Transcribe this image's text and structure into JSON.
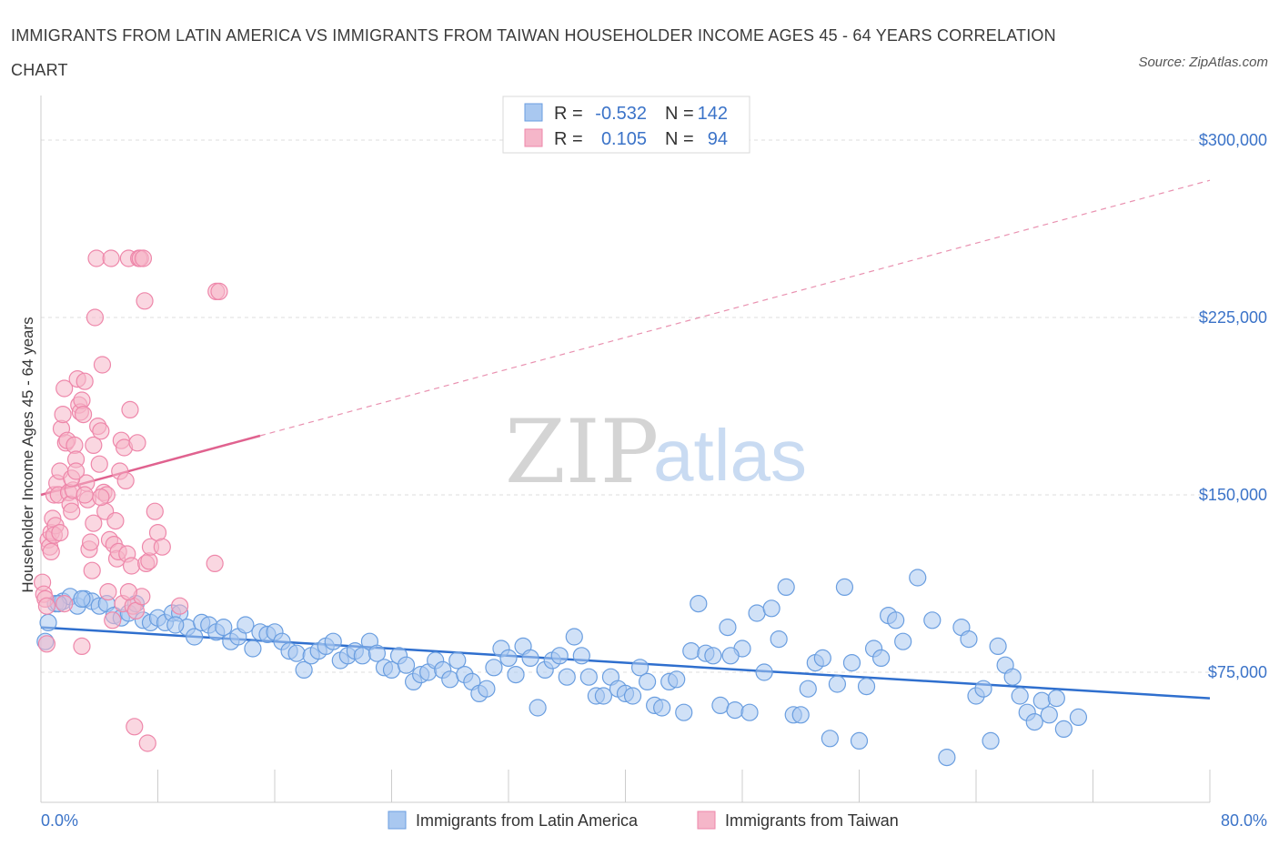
{
  "title": "IMMIGRANTS FROM LATIN AMERICA VS IMMIGRANTS FROM TAIWAN HOUSEHOLDER INCOME AGES 45 - 64 YEARS CORRELATION CHART",
  "source": "Source: ZipAtlas.com",
  "watermark": {
    "zip": "ZIP",
    "atlas": "atlas"
  },
  "legend": {
    "r_label": "R =",
    "n_label": "N =",
    "rows": [
      {
        "r": "-0.532",
        "n": "142",
        "color": "#a9c8f0"
      },
      {
        "r": "0.105",
        "n": "94",
        "color": "#f5b6c9"
      }
    ]
  },
  "chart_data": {
    "type": "scatter",
    "xlabel": "",
    "ylabel": "Householder Income Ages 45 - 64 years",
    "xlim": [
      0,
      80
    ],
    "ylim": [
      20000,
      315000
    ],
    "x_tick_labels": [
      "0.0%",
      "80.0%"
    ],
    "y_ticks": [
      {
        "value": 75000,
        "label": "$75,000"
      },
      {
        "value": 150000,
        "label": "$150,000"
      },
      {
        "value": 225000,
        "label": "$225,000"
      },
      {
        "value": 300000,
        "label": "$300,000"
      }
    ],
    "grid": "horizontal-dashed",
    "series": [
      {
        "name": "Immigrants from Latin America",
        "color": "#6a9ee0",
        "fill": "#a9c8f0",
        "trend": {
          "x": [
            0,
            80
          ],
          "y": [
            94000,
            64000
          ],
          "color": "#2f6fce"
        },
        "points": [
          [
            0.3,
            88000
          ],
          [
            0.5,
            96000
          ],
          [
            1.0,
            104000
          ],
          [
            1.5,
            105000
          ],
          [
            2.0,
            107000
          ],
          [
            2.5,
            103000
          ],
          [
            3.0,
            106000
          ],
          [
            3.5,
            105000
          ],
          [
            4.0,
            103000
          ],
          [
            4.5,
            104000
          ],
          [
            5.0,
            99000
          ],
          [
            5.5,
            98000
          ],
          [
            6.0,
            100000
          ],
          [
            6.5,
            104000
          ],
          [
            7.0,
            97000
          ],
          [
            7.5,
            96000
          ],
          [
            8.0,
            98000
          ],
          [
            8.5,
            96000
          ],
          [
            9.0,
            100000
          ],
          [
            9.5,
            100000
          ],
          [
            10.0,
            94000
          ],
          [
            10.5,
            90000
          ],
          [
            11.0,
            96000
          ],
          [
            11.5,
            95000
          ],
          [
            12.0,
            92000
          ],
          [
            12.5,
            94000
          ],
          [
            13.0,
            88000
          ],
          [
            13.5,
            90000
          ],
          [
            14.0,
            95000
          ],
          [
            14.5,
            85000
          ],
          [
            15.0,
            92000
          ],
          [
            15.5,
            91000
          ],
          [
            16.0,
            92000
          ],
          [
            16.5,
            88000
          ],
          [
            17.0,
            84000
          ],
          [
            17.5,
            83000
          ],
          [
            18.0,
            76000
          ],
          [
            18.5,
            82000
          ],
          [
            19.0,
            84000
          ],
          [
            19.5,
            86000
          ],
          [
            20.0,
            88000
          ],
          [
            20.5,
            80000
          ],
          [
            21.0,
            82000
          ],
          [
            21.5,
            84000
          ],
          [
            22.0,
            82000
          ],
          [
            22.5,
            88000
          ],
          [
            23.0,
            83000
          ],
          [
            23.5,
            77000
          ],
          [
            24.0,
            76000
          ],
          [
            24.5,
            82000
          ],
          [
            25.0,
            78000
          ],
          [
            25.5,
            71000
          ],
          [
            26.0,
            74000
          ],
          [
            26.5,
            75000
          ],
          [
            27.0,
            80000
          ],
          [
            27.5,
            76000
          ],
          [
            28.0,
            72000
          ],
          [
            28.5,
            80000
          ],
          [
            29.0,
            74000
          ],
          [
            29.5,
            71000
          ],
          [
            30.0,
            66000
          ],
          [
            30.5,
            68000
          ],
          [
            31.0,
            77000
          ],
          [
            31.5,
            85000
          ],
          [
            32.0,
            81000
          ],
          [
            32.5,
            74000
          ],
          [
            33.0,
            86000
          ],
          [
            33.5,
            81000
          ],
          [
            34.0,
            60000
          ],
          [
            34.5,
            76000
          ],
          [
            35.0,
            80000
          ],
          [
            35.5,
            82000
          ],
          [
            36.0,
            73000
          ],
          [
            36.5,
            90000
          ],
          [
            37.0,
            82000
          ],
          [
            37.5,
            73000
          ],
          [
            38.0,
            65000
          ],
          [
            38.5,
            65000
          ],
          [
            39.0,
            73000
          ],
          [
            39.5,
            68000
          ],
          [
            40.0,
            66000
          ],
          [
            40.5,
            65000
          ],
          [
            41.0,
            77000
          ],
          [
            41.5,
            71000
          ],
          [
            42.0,
            61000
          ],
          [
            42.5,
            60000
          ],
          [
            43.0,
            71000
          ],
          [
            43.5,
            72000
          ],
          [
            44.0,
            58000
          ],
          [
            44.5,
            84000
          ],
          [
            45.0,
            104000
          ],
          [
            45.5,
            83000
          ],
          [
            46.0,
            82000
          ],
          [
            46.5,
            61000
          ],
          [
            47.0,
            94000
          ],
          [
            47.5,
            59000
          ],
          [
            48.0,
            85000
          ],
          [
            48.5,
            58000
          ],
          [
            49.0,
            100000
          ],
          [
            49.5,
            75000
          ],
          [
            50.0,
            102000
          ],
          [
            50.5,
            89000
          ],
          [
            51.0,
            111000
          ],
          [
            51.5,
            57000
          ],
          [
            52.0,
            57000
          ],
          [
            52.5,
            68000
          ],
          [
            53.0,
            79000
          ],
          [
            53.5,
            81000
          ],
          [
            54.0,
            47000
          ],
          [
            54.5,
            70000
          ],
          [
            55.0,
            111000
          ],
          [
            55.5,
            79000
          ],
          [
            56.0,
            46000
          ],
          [
            56.5,
            69000
          ],
          [
            57.0,
            85000
          ],
          [
            57.5,
            81000
          ],
          [
            58.0,
            99000
          ],
          [
            58.5,
            97000
          ],
          [
            59.0,
            88000
          ],
          [
            60.0,
            115000
          ],
          [
            61.0,
            97000
          ],
          [
            62.0,
            39000
          ],
          [
            63.0,
            94000
          ],
          [
            63.5,
            89000
          ],
          [
            64.0,
            65000
          ],
          [
            64.5,
            68000
          ],
          [
            65.0,
            46000
          ],
          [
            65.5,
            86000
          ],
          [
            66.0,
            78000
          ],
          [
            66.5,
            73000
          ],
          [
            67.0,
            65000
          ],
          [
            67.5,
            58000
          ],
          [
            68.0,
            54000
          ],
          [
            68.5,
            63000
          ],
          [
            69.0,
            57000
          ],
          [
            69.5,
            64000
          ],
          [
            70.0,
            51000
          ],
          [
            71.0,
            56000
          ],
          [
            1.2,
            104000
          ],
          [
            2.8,
            106000
          ],
          [
            9.2,
            95000
          ],
          [
            47.2,
            82000
          ]
        ]
      },
      {
        "name": "Immigrants from Taiwan",
        "color": "#ee87aa",
        "fill": "#f5b6c9",
        "trend": {
          "x": [
            0,
            15
          ],
          "y": [
            150000,
            175000
          ],
          "dashed_to": [
            80,
            283000
          ],
          "color": "#e0628f"
        },
        "points": [
          [
            0.1,
            113000
          ],
          [
            0.2,
            108000
          ],
          [
            0.3,
            106000
          ],
          [
            0.4,
            103000
          ],
          [
            0.5,
            131000
          ],
          [
            0.6,
            128000
          ],
          [
            0.7,
            134000
          ],
          [
            0.8,
            140000
          ],
          [
            0.9,
            150000
          ],
          [
            1.0,
            137000
          ],
          [
            1.1,
            155000
          ],
          [
            1.2,
            150000
          ],
          [
            1.3,
            160000
          ],
          [
            1.4,
            178000
          ],
          [
            1.5,
            184000
          ],
          [
            1.6,
            195000
          ],
          [
            1.7,
            172000
          ],
          [
            1.8,
            173000
          ],
          [
            1.9,
            151000
          ],
          [
            2.0,
            146000
          ],
          [
            2.1,
            143000
          ],
          [
            2.2,
            152000
          ],
          [
            2.3,
            171000
          ],
          [
            2.4,
            165000
          ],
          [
            2.5,
            199000
          ],
          [
            2.6,
            188000
          ],
          [
            2.7,
            185000
          ],
          [
            2.8,
            190000
          ],
          [
            2.9,
            184000
          ],
          [
            3.0,
            198000
          ],
          [
            3.1,
            155000
          ],
          [
            3.2,
            148000
          ],
          [
            3.3,
            127000
          ],
          [
            3.4,
            130000
          ],
          [
            3.5,
            118000
          ],
          [
            3.6,
            171000
          ],
          [
            3.7,
            225000
          ],
          [
            3.8,
            250000
          ],
          [
            3.9,
            179000
          ],
          [
            4.0,
            163000
          ],
          [
            4.1,
            177000
          ],
          [
            4.2,
            205000
          ],
          [
            4.3,
            151000
          ],
          [
            4.4,
            143000
          ],
          [
            4.5,
            150000
          ],
          [
            4.6,
            109000
          ],
          [
            4.7,
            131000
          ],
          [
            4.8,
            250000
          ],
          [
            4.9,
            97000
          ],
          [
            5.0,
            129000
          ],
          [
            5.1,
            139000
          ],
          [
            5.2,
            123000
          ],
          [
            5.3,
            126000
          ],
          [
            5.4,
            160000
          ],
          [
            5.5,
            173000
          ],
          [
            5.6,
            104000
          ],
          [
            5.7,
            170000
          ],
          [
            5.8,
            156000
          ],
          [
            5.9,
            125000
          ],
          [
            6.0,
            250000
          ],
          [
            6.1,
            186000
          ],
          [
            6.2,
            120000
          ],
          [
            6.3,
            103000
          ],
          [
            6.4,
            52000
          ],
          [
            6.5,
            101000
          ],
          [
            6.6,
            172000
          ],
          [
            6.7,
            250000
          ],
          [
            6.8,
            250000
          ],
          [
            6.9,
            107000
          ],
          [
            7.0,
            250000
          ],
          [
            7.1,
            232000
          ],
          [
            7.2,
            121000
          ],
          [
            7.3,
            45000
          ],
          [
            7.4,
            122000
          ],
          [
            7.5,
            128000
          ],
          [
            7.8,
            143000
          ],
          [
            8.0,
            134000
          ],
          [
            8.3,
            128000
          ],
          [
            9.5,
            103000
          ],
          [
            11.9,
            121000
          ],
          [
            12.0,
            236000
          ],
          [
            12.2,
            236000
          ],
          [
            0.7,
            126000
          ],
          [
            1.6,
            104000
          ],
          [
            2.1,
            157000
          ],
          [
            2.8,
            86000
          ],
          [
            3.6,
            138000
          ],
          [
            4.1,
            149000
          ],
          [
            0.4,
            87000
          ],
          [
            0.9,
            133000
          ],
          [
            1.3,
            134000
          ],
          [
            2.4,
            160000
          ],
          [
            3.0,
            150000
          ],
          [
            6.0,
            109000
          ]
        ]
      }
    ],
    "bottom_legend": [
      "Immigrants from Latin America",
      "Immigrants from Taiwan"
    ]
  }
}
